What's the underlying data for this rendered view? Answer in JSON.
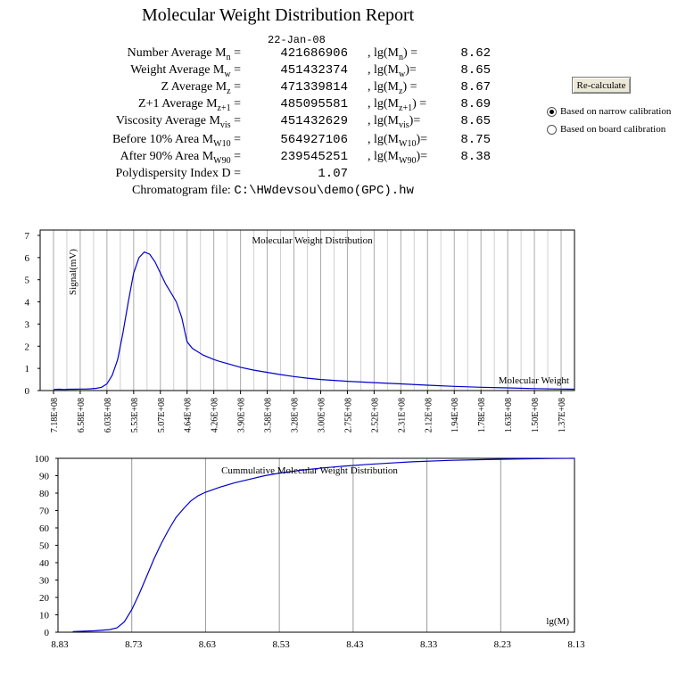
{
  "report": {
    "title": "Molecular Weight Distribution Report",
    "date": "22-Jan-08",
    "rows": [
      {
        "label": "Number Average M",
        "sub": "n",
        "suffix": " =",
        "value": "421686906",
        "lg_label": ", lg(M",
        "lg_sub": "n",
        "lg_suffix": ") =",
        "lg_value": "8.62"
      },
      {
        "label": "Weight Average M",
        "sub": "w",
        "suffix": " =",
        "value": "451432374",
        "lg_label": ", lg(M",
        "lg_sub": "w",
        "lg_suffix": ")=",
        "lg_value": "8.65"
      },
      {
        "label": "Z Average M",
        "sub": "z",
        "suffix": " =",
        "value": "471339814",
        "lg_label": ", lg(M",
        "lg_sub": "z",
        "lg_suffix": ") =",
        "lg_value": "8.67"
      },
      {
        "label": "Z+1 Average M",
        "sub": "z+1",
        "suffix": " =",
        "value": "485095581",
        "lg_label": ", lg(M",
        "lg_sub": "z+1",
        "lg_suffix": ") =",
        "lg_value": "8.69"
      },
      {
        "label": "Viscosity Average M",
        "sub": "vis",
        "suffix": " =",
        "value": "451432629",
        "lg_label": ", lg(M",
        "lg_sub": "vis",
        "lg_suffix": ")=",
        "lg_value": "8.65"
      },
      {
        "label": "Before 10% Area M",
        "sub": "W10",
        "suffix": " =",
        "value": "564927106",
        "lg_label": ", lg(M",
        "lg_sub": "W10",
        "lg_suffix": ")=",
        "lg_value": "8.75"
      },
      {
        "label": "After 90% Area M",
        "sub": "W90",
        "suffix": " =",
        "value": "239545251",
        "lg_label": ", lg(M",
        "lg_sub": "W90",
        "lg_suffix": ")=",
        "lg_value": "8.38"
      }
    ],
    "pdi_label": "Polydispersity Index D =",
    "pdi_value": "1.07",
    "file_label": "Chromatogram file:",
    "file_value": "C:\\HWdevsou\\demo(GPC).hw"
  },
  "controls": {
    "recalc_label": "Re-calculate",
    "radio_narrow": "Based on narrow calibration",
    "radio_board": "Based on board calibration",
    "selected": "narrow"
  },
  "chart_data": [
    {
      "type": "line",
      "title": "Molecular Weight Distribution",
      "ylabel": "Signal(mV)",
      "xlabel": "Molecular Weight",
      "ylim": [
        0,
        7
      ],
      "y_ticks": [
        0,
        1,
        2,
        3,
        4,
        5,
        6,
        7
      ],
      "x_tick_labels": [
        "7.18E+08",
        "6.58E+08",
        "6.03E+08",
        "5.53E+08",
        "5.07E+08",
        "4.64E+08",
        "4.26E+08",
        "3.90E+08",
        "3.58E+08",
        "3.28E+08",
        "3.00E+08",
        "2.75E+08",
        "2.52E+08",
        "2.31E+08",
        "2.12E+08",
        "1.94E+08",
        "1.78E+08",
        "1.63E+08",
        "1.50E+08",
        "1.37E+08"
      ],
      "grid": "vertical",
      "line_color": "#0000cc",
      "series": [
        {
          "x": [
            0,
            0.2,
            0.4,
            0.6,
            0.8,
            1.0,
            1.2,
            1.4,
            1.6,
            1.8,
            2.0,
            2.2,
            2.4,
            2.6,
            2.8,
            3.0,
            3.2,
            3.4,
            3.6,
            3.8,
            4.0,
            4.2,
            4.4,
            4.6,
            4.8,
            5.0,
            5.2,
            5.4,
            5.6,
            5.8,
            6.0,
            6.2,
            6.5,
            7,
            7.5,
            8,
            8.5,
            9,
            9.5,
            10,
            11,
            12,
            13,
            14,
            15,
            16,
            17,
            18,
            19,
            19.5
          ],
          "y": [
            0.05,
            0.06,
            0.05,
            0.06,
            0.06,
            0.07,
            0.07,
            0.08,
            0.1,
            0.15,
            0.3,
            0.7,
            1.4,
            2.6,
            4.0,
            5.3,
            6.0,
            6.25,
            6.15,
            5.8,
            5.3,
            4.8,
            4.4,
            4.0,
            3.3,
            2.2,
            1.9,
            1.75,
            1.6,
            1.5,
            1.4,
            1.32,
            1.22,
            1.05,
            0.92,
            0.82,
            0.72,
            0.63,
            0.56,
            0.5,
            0.42,
            0.36,
            0.3,
            0.24,
            0.19,
            0.15,
            0.12,
            0.09,
            0.07,
            0.06
          ]
        }
      ]
    },
    {
      "type": "line",
      "title": "Cummulative Molecular Weight Distribution",
      "xlabel": "lg(M)",
      "ylim": [
        0,
        100
      ],
      "y_ticks": [
        0,
        10,
        20,
        30,
        40,
        50,
        60,
        70,
        80,
        90,
        100
      ],
      "xlim": [
        8.83,
        8.13
      ],
      "x_tick_labels": [
        "8.83",
        "8.73",
        "8.63",
        "8.53",
        "8.43",
        "8.33",
        "8.23",
        "8.13"
      ],
      "grid": "vertical",
      "line_color": "#0000cc",
      "series": [
        {
          "x": [
            8.81,
            8.78,
            8.76,
            8.75,
            8.74,
            8.73,
            8.72,
            8.71,
            8.7,
            8.69,
            8.68,
            8.67,
            8.66,
            8.65,
            8.64,
            8.63,
            8.61,
            8.59,
            8.57,
            8.55,
            8.53,
            8.5,
            8.47,
            8.44,
            8.41,
            8.38,
            8.35,
            8.3,
            8.25,
            8.2,
            8.16,
            8.13
          ],
          "y": [
            0.3,
            0.8,
            1.5,
            2.5,
            6,
            13,
            22,
            32,
            42,
            51,
            59,
            66,
            71,
            75.5,
            78.5,
            80.5,
            83.5,
            86,
            88,
            90,
            91.5,
            93.2,
            94.5,
            95.6,
            96.5,
            97.3,
            98,
            98.8,
            99.3,
            99.7,
            99.9,
            100
          ]
        }
      ]
    }
  ]
}
